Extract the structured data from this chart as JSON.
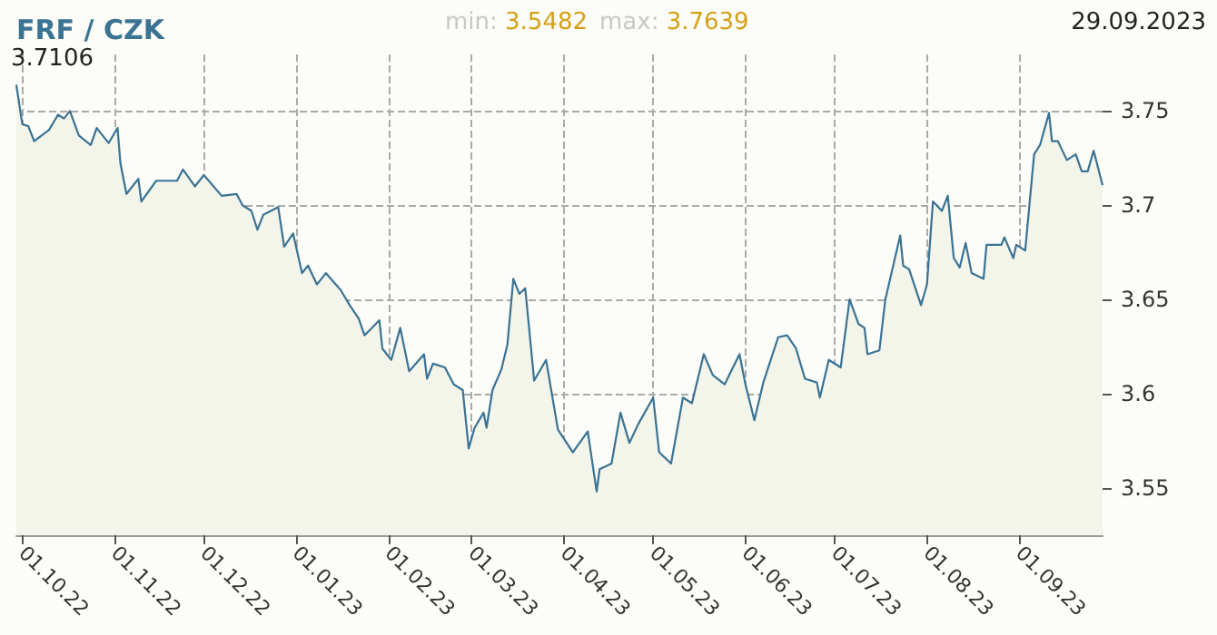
{
  "chart_data": {
    "type": "area",
    "title": "FRF / CZK",
    "annotations": [
      "min: 3.5482",
      "max: 3.7639",
      "29.09.2023",
      "3.7106"
    ],
    "x": [
      "2022-09-29",
      "2022-10-01",
      "2022-10-03",
      "2022-10-05",
      "2022-10-10",
      "2022-10-13",
      "2022-10-15",
      "2022-10-17",
      "2022-10-20",
      "2022-10-24",
      "2022-10-26",
      "2022-10-30",
      "2022-11-02",
      "2022-11-03",
      "2022-11-05",
      "2022-11-09",
      "2022-11-10",
      "2022-11-15",
      "2022-11-22",
      "2022-11-24",
      "2022-11-28",
      "2022-12-01",
      "2022-12-07",
      "2022-12-12",
      "2022-12-14",
      "2022-12-17",
      "2022-12-19",
      "2022-12-21",
      "2022-12-26",
      "2022-12-28",
      "2022-12-31",
      "2023-01-03",
      "2023-01-05",
      "2023-01-08",
      "2023-01-11",
      "2023-01-16",
      "2023-01-19",
      "2023-01-22",
      "2023-01-24",
      "2023-01-29",
      "2023-01-30",
      "2023-02-02",
      "2023-02-05",
      "2023-02-08",
      "2023-02-13",
      "2023-02-14",
      "2023-02-16",
      "2023-02-20",
      "2023-02-23",
      "2023-02-26",
      "2023-02-28",
      "2023-03-02",
      "2023-03-05",
      "2023-03-06",
      "2023-03-08",
      "2023-03-11",
      "2023-03-13",
      "2023-03-15",
      "2023-03-17",
      "2023-03-19",
      "2023-03-22",
      "2023-03-26",
      "2023-03-30",
      "2023-04-04",
      "2023-04-09",
      "2023-04-12",
      "2023-04-13",
      "2023-04-17",
      "2023-04-20",
      "2023-04-23",
      "2023-04-26",
      "2023-05-01",
      "2023-05-03",
      "2023-05-07",
      "2023-05-11",
      "2023-05-14",
      "2023-05-18",
      "2023-05-21",
      "2023-05-25",
      "2023-05-30",
      "2023-06-01",
      "2023-06-04",
      "2023-06-07",
      "2023-06-12",
      "2023-06-15",
      "2023-06-18",
      "2023-06-21",
      "2023-06-25",
      "2023-06-26",
      "2023-06-29",
      "2023-07-03",
      "2023-07-06",
      "2023-07-09",
      "2023-07-11",
      "2023-07-12",
      "2023-07-16",
      "2023-07-18",
      "2023-07-23",
      "2023-07-24",
      "2023-07-26",
      "2023-07-30",
      "2023-08-01",
      "2023-08-03",
      "2023-08-06",
      "2023-08-08",
      "2023-08-10",
      "2023-08-12",
      "2023-08-14",
      "2023-08-16",
      "2023-08-20",
      "2023-08-21",
      "2023-08-26",
      "2023-08-27",
      "2023-08-30",
      "2023-08-31",
      "2023-09-03",
      "2023-09-06",
      "2023-09-08",
      "2023-09-11",
      "2023-09-12",
      "2023-09-14",
      "2023-09-17",
      "2023-09-20",
      "2023-09-22",
      "2023-09-24",
      "2023-09-26",
      "2023-09-29"
    ],
    "series": [
      {
        "color": "#3a7394",
        "values": [
          3.7639,
          3.743,
          3.742,
          3.734,
          3.74,
          3.748,
          3.746,
          3.75,
          3.737,
          3.732,
          3.741,
          3.733,
          3.741,
          3.722,
          3.706,
          3.714,
          3.702,
          3.713,
          3.713,
          3.719,
          3.71,
          3.716,
          3.705,
          3.706,
          3.7,
          3.697,
          3.687,
          3.695,
          3.699,
          3.678,
          3.685,
          3.664,
          3.668,
          3.658,
          3.664,
          3.655,
          3.647,
          3.64,
          3.631,
          3.639,
          3.624,
          3.618,
          3.635,
          3.612,
          3.621,
          3.608,
          3.616,
          3.614,
          3.605,
          3.602,
          3.571,
          3.582,
          3.59,
          3.582,
          3.602,
          3.613,
          3.626,
          3.661,
          3.653,
          3.656,
          3.607,
          3.618,
          3.581,
          3.569,
          3.58,
          3.5482,
          3.56,
          3.563,
          3.59,
          3.574,
          3.584,
          3.598,
          3.569,
          3.563,
          3.598,
          3.595,
          3.621,
          3.61,
          3.605,
          3.621,
          3.605,
          3.586,
          3.606,
          3.63,
          3.631,
          3.624,
          3.608,
          3.606,
          3.598,
          3.618,
          3.614,
          3.65,
          3.637,
          3.635,
          3.621,
          3.623,
          3.65,
          3.684,
          3.668,
          3.666,
          3.647,
          3.658,
          3.702,
          3.697,
          3.705,
          3.672,
          3.667,
          3.68,
          3.664,
          3.661,
          3.679,
          3.679,
          3.683,
          3.672,
          3.679,
          3.676,
          3.727,
          3.732,
          3.749,
          3.734,
          3.734,
          3.724,
          3.727,
          3.718,
          3.718,
          3.729,
          3.7106
        ]
      }
    ],
    "xlim": [
      "2022-09-29",
      "2023-09-29"
    ],
    "xticks": [
      {
        "value": "2022-10-01",
        "label": "01.10.22"
      },
      {
        "value": "2022-11-01",
        "label": "01.11.22"
      },
      {
        "value": "2022-12-01",
        "label": "01.12.22"
      },
      {
        "value": "2023-01-01",
        "label": "01.01.23"
      },
      {
        "value": "2023-02-01",
        "label": "01.02.23"
      },
      {
        "value": "2023-03-01",
        "label": "01.03.23"
      },
      {
        "value": "2023-04-01",
        "label": "01.04.23"
      },
      {
        "value": "2023-05-01",
        "label": "01.05.23"
      },
      {
        "value": "2023-06-01",
        "label": "01.06.23"
      },
      {
        "value": "2023-07-01",
        "label": "01.07.23"
      },
      {
        "value": "2023-08-01",
        "label": "01.08.23"
      },
      {
        "value": "2023-09-01",
        "label": "01.09.23"
      }
    ],
    "ylim": [
      3.525,
      3.78
    ],
    "yticks": [
      3.55,
      3.6,
      3.65,
      3.7,
      3.75
    ],
    "grid": true,
    "marker": "none",
    "line_style": "solid"
  }
}
